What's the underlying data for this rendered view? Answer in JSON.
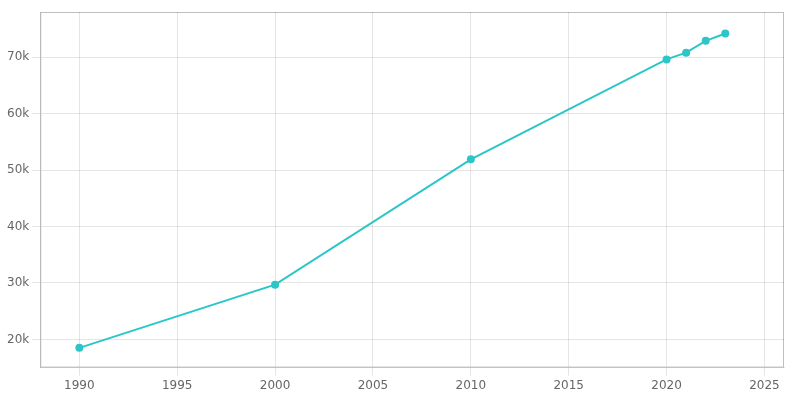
{
  "chart_data": {
    "type": "line",
    "x": [
      1990,
      2000,
      2010,
      2020,
      2021,
      2022,
      2023
    ],
    "values": [
      18500,
      29700,
      51900,
      69600,
      70800,
      72900,
      74200
    ],
    "color": "#2DC6C8",
    "marker": "circle",
    "xlim": [
      1988,
      2026
    ],
    "ylim": [
      15000,
      78000
    ],
    "xticks": [
      1990,
      1995,
      2000,
      2005,
      2010,
      2015,
      2020,
      2025
    ],
    "yticks": [
      {
        "value": 20000,
        "label": "20k"
      },
      {
        "value": 30000,
        "label": "30k"
      },
      {
        "value": 40000,
        "label": "40k"
      },
      {
        "value": 50000,
        "label": "50k"
      },
      {
        "value": 60000,
        "label": "60k"
      },
      {
        "value": 70000,
        "label": "70k"
      }
    ],
    "grid": true
  }
}
